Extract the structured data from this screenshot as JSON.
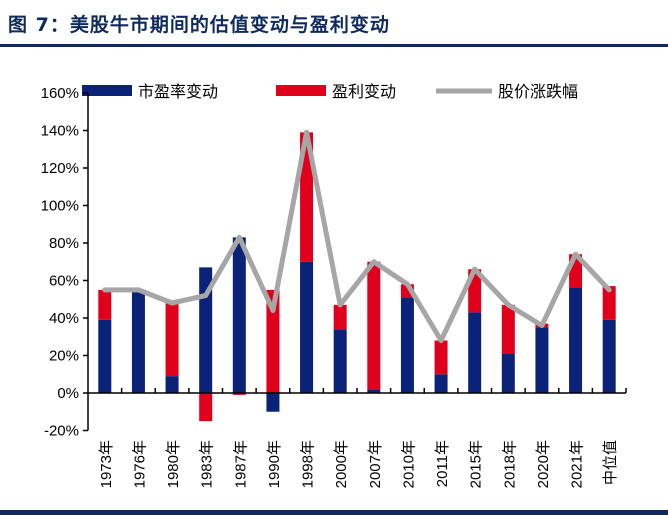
{
  "title": "图 7：美股牛市期间的估值变动与盈利变动",
  "colors": {
    "pe": "#0a2277",
    "earnings": "#e0001b",
    "price": "#a6a6a6",
    "frame": "#0f2a5c"
  },
  "chart_data": {
    "type": "bar",
    "stacked": true,
    "categories": [
      "1973年",
      "1976年",
      "1980年",
      "1983年",
      "1987年",
      "1990年",
      "1998年",
      "2000年",
      "2007年",
      "2010年",
      "2011年",
      "2015年",
      "2018年",
      "2020年",
      "2021年",
      "中位值"
    ],
    "series": [
      {
        "name": "市盈率变动",
        "type": "bar",
        "values": [
          39,
          54,
          9,
          67,
          83,
          -10,
          70,
          34,
          2,
          51,
          10,
          43,
          21,
          35,
          56,
          39
        ]
      },
      {
        "name": "盈利变动",
        "type": "bar",
        "values": [
          16,
          1,
          39,
          -15,
          -1,
          55,
          69,
          13,
          68,
          7,
          18,
          23,
          26,
          2,
          18,
          18
        ]
      },
      {
        "name": "股价涨跌幅",
        "type": "line",
        "values": [
          55,
          55,
          48,
          52,
          83,
          44,
          139,
          47,
          70,
          58,
          28,
          66,
          47,
          36,
          74,
          55
        ]
      }
    ],
    "ylim": [
      -20,
      160
    ],
    "yticks": [
      "-20%",
      "0%",
      "20%",
      "40%",
      "60%",
      "80%",
      "100%",
      "120%",
      "140%",
      "160%"
    ],
    "legend_position": "top",
    "grid": false
  }
}
